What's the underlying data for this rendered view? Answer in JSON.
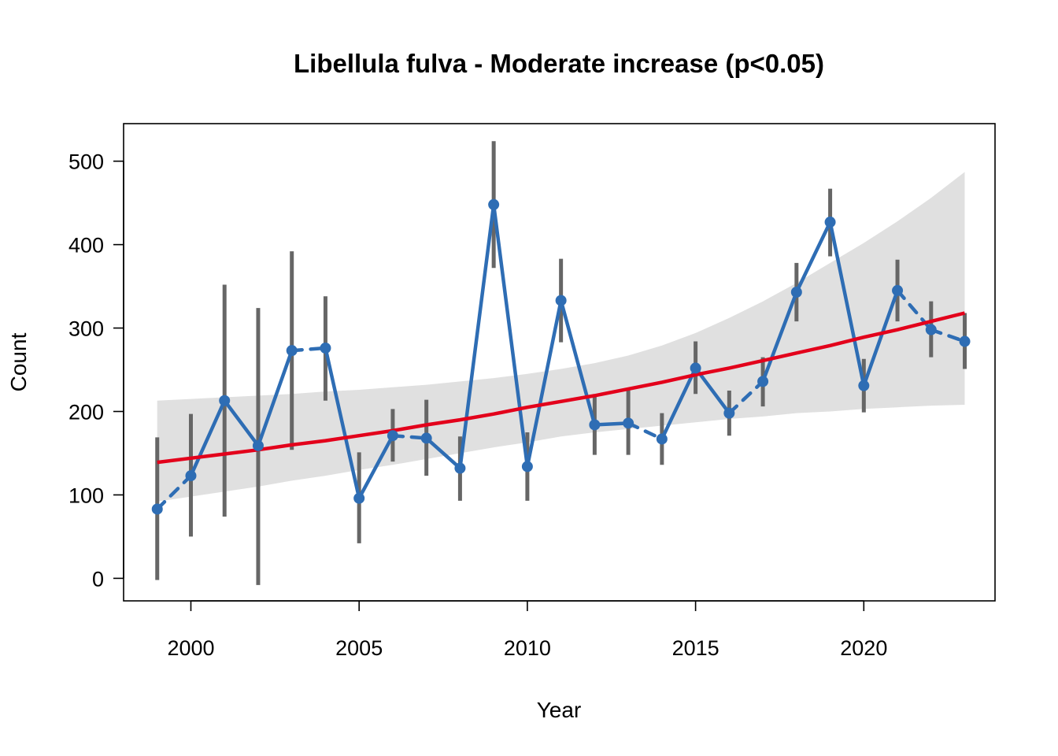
{
  "chart_data": {
    "type": "line",
    "title": "Libellula fulva - Moderate increase (p<0.05)",
    "xlabel": "Year",
    "ylabel": "Count",
    "xlim": [
      1998.0,
      2023.9
    ],
    "ylim": [
      -27,
      545
    ],
    "x_ticks": [
      2000,
      2005,
      2010,
      2015,
      2020
    ],
    "y_ticks": [
      0,
      100,
      200,
      300,
      400,
      500
    ],
    "grid": false,
    "colors": {
      "series": "#2E6DB4",
      "error_bars": "#666666",
      "trend": "#E3001B",
      "confidence_band": "#E0E0E0",
      "axes": "#000000"
    },
    "observations": {
      "years": [
        1999,
        2000,
        2001,
        2002,
        2003,
        2004,
        2005,
        2006,
        2007,
        2008,
        2009,
        2010,
        2011,
        2012,
        2013,
        2014,
        2015,
        2016,
        2017,
        2018,
        2019,
        2020,
        2021,
        2022,
        2023
      ],
      "values": [
        83,
        123,
        213,
        159,
        273,
        276,
        96,
        171,
        168,
        132,
        448,
        134,
        333,
        184,
        186,
        167,
        252,
        198,
        236,
        343,
        427,
        231,
        345,
        298,
        284
      ],
      "lower": [
        -2,
        50,
        74,
        -8,
        154,
        213,
        42,
        140,
        123,
        93,
        372,
        93,
        283,
        148,
        148,
        136,
        221,
        171,
        206,
        308,
        386,
        199,
        308,
        265,
        251
      ],
      "upper": [
        169,
        197,
        352,
        324,
        392,
        338,
        151,
        203,
        214,
        170,
        524,
        175,
        383,
        220,
        227,
        198,
        284,
        225,
        265,
        378,
        467,
        263,
        382,
        332,
        318
      ],
      "interpolated_segments_after_year": [
        1999,
        2003,
        2006,
        2013,
        2016,
        2021,
        2022
      ]
    },
    "trend": {
      "years": [
        1999,
        2000,
        2001,
        2002,
        2003,
        2004,
        2005,
        2006,
        2007,
        2008,
        2009,
        2010,
        2011,
        2012,
        2013,
        2014,
        2015,
        2016,
        2017,
        2018,
        2019,
        2020,
        2021,
        2022,
        2023
      ],
      "fit": [
        139,
        144,
        149,
        154,
        160,
        165,
        171,
        177,
        184,
        190,
        197,
        205,
        212,
        219,
        227,
        235,
        244,
        252,
        261,
        270,
        279,
        289,
        298,
        308,
        318
      ],
      "lower": [
        92,
        98,
        104,
        110,
        117,
        123,
        130,
        136,
        143,
        150,
        157,
        163,
        170,
        175,
        179,
        183,
        187,
        191,
        194,
        198,
        200,
        203,
        205,
        207,
        208
      ],
      "upper": [
        213,
        215,
        217,
        219,
        221,
        224,
        226,
        229,
        232,
        236,
        240,
        245,
        251,
        258,
        267,
        279,
        294,
        312,
        332,
        354,
        378,
        402,
        428,
        456,
        487
      ]
    }
  }
}
